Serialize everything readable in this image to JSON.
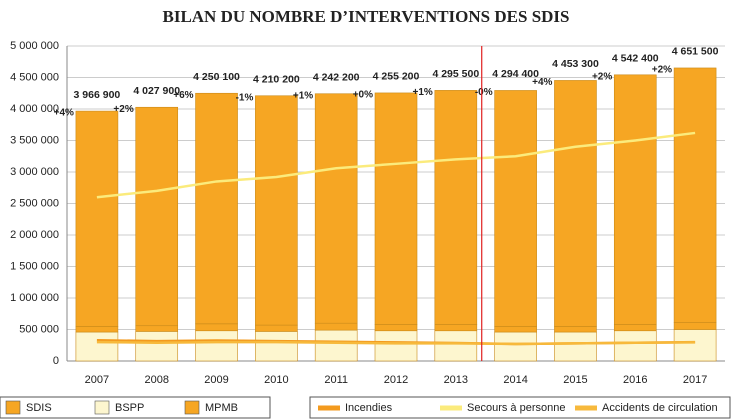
{
  "chart_data": {
    "type": "bar",
    "title": "BILAN DU NOMBRE D’INTERVENTIONS DES SDIS",
    "categories": [
      "2007",
      "2008",
      "2009",
      "2010",
      "2011",
      "2012",
      "2013",
      "2014",
      "2015",
      "2016",
      "2017"
    ],
    "series": [
      {
        "name": "BSPP",
        "color": "#fdf6cf",
        "values": [
          460000,
          470000,
          480000,
          470000,
          490000,
          480000,
          480000,
          460000,
          460000,
          480000,
          500000
        ]
      },
      {
        "name": "MPMB",
        "color": "#f6a623",
        "values": [
          90000,
          90000,
          110000,
          100000,
          110000,
          100000,
          100000,
          90000,
          90000,
          100000,
          110000
        ]
      },
      {
        "name": "SDIS",
        "color": "#f6a623",
        "values": [
          3416900,
          3467900,
          3660100,
          3640200,
          3642200,
          3675200,
          3715500,
          3744400,
          3903300,
          3962400,
          4041500
        ]
      }
    ],
    "totals": [
      3966900,
      4027900,
      4250100,
      4210200,
      4242200,
      4255200,
      4295500,
      4294400,
      4453300,
      4542400,
      4651500
    ],
    "total_labels": [
      "3 966 900",
      "4 027 900",
      "4 250 100",
      "4 210 200",
      "4 242 200",
      "4 255 200",
      "4 295 500",
      "4 294 400",
      "4 453 300",
      "4 542 400",
      "4 651 500"
    ],
    "changes": [
      4,
      2,
      6,
      -1,
      1,
      0,
      1,
      0,
      4,
      2,
      2
    ],
    "change_labels": [
      "+4%",
      "+2%",
      "+6%",
      "-1%",
      "+1%",
      "+0%",
      "+1%",
      "-0%",
      "+4%",
      "+2%",
      "+2%"
    ],
    "lines": [
      {
        "name": "Incendies",
        "color": "#f39a1e",
        "values": [
          330000,
          315000,
          325000,
          315000,
          305000,
          295000,
          285000,
          270000,
          280000,
          290000,
          300000
        ]
      },
      {
        "name": "Secours à personne",
        "color": "#fbeb7c",
        "values": [
          2600000,
          2700000,
          2850000,
          2920000,
          3060000,
          3130000,
          3200000,
          3250000,
          3400000,
          3500000,
          3620000
        ]
      },
      {
        "name": "Accidents de circulation",
        "color": "#f7b93c",
        "values": [
          300000,
          290000,
          300000,
          300000,
          290000,
          280000,
          280000,
          270000,
          280000,
          290000,
          295000
        ]
      }
    ],
    "ylim": [
      0,
      5000000
    ],
    "yticks": [
      0,
      {
        "value": 500000,
        "label": "500 000"
      },
      {
        "value": 1000000,
        "label": "1 000 000"
      },
      {
        "value": 1500000,
        "label": "1 500 000"
      },
      {
        "value": 2000000,
        "label": "2 000 000"
      },
      {
        "value": 2500000,
        "label": "2 500 000"
      },
      {
        "value": 3000000,
        "label": "3 000 000"
      },
      {
        "value": 3500000,
        "label": "3 500 000"
      },
      {
        "value": 4000000,
        "label": "4 000 000"
      },
      {
        "value": 4500000,
        "label": "4 500 000"
      },
      {
        "value": 5000000,
        "label": "5 000 000"
      }
    ],
    "grid": true
  }
}
